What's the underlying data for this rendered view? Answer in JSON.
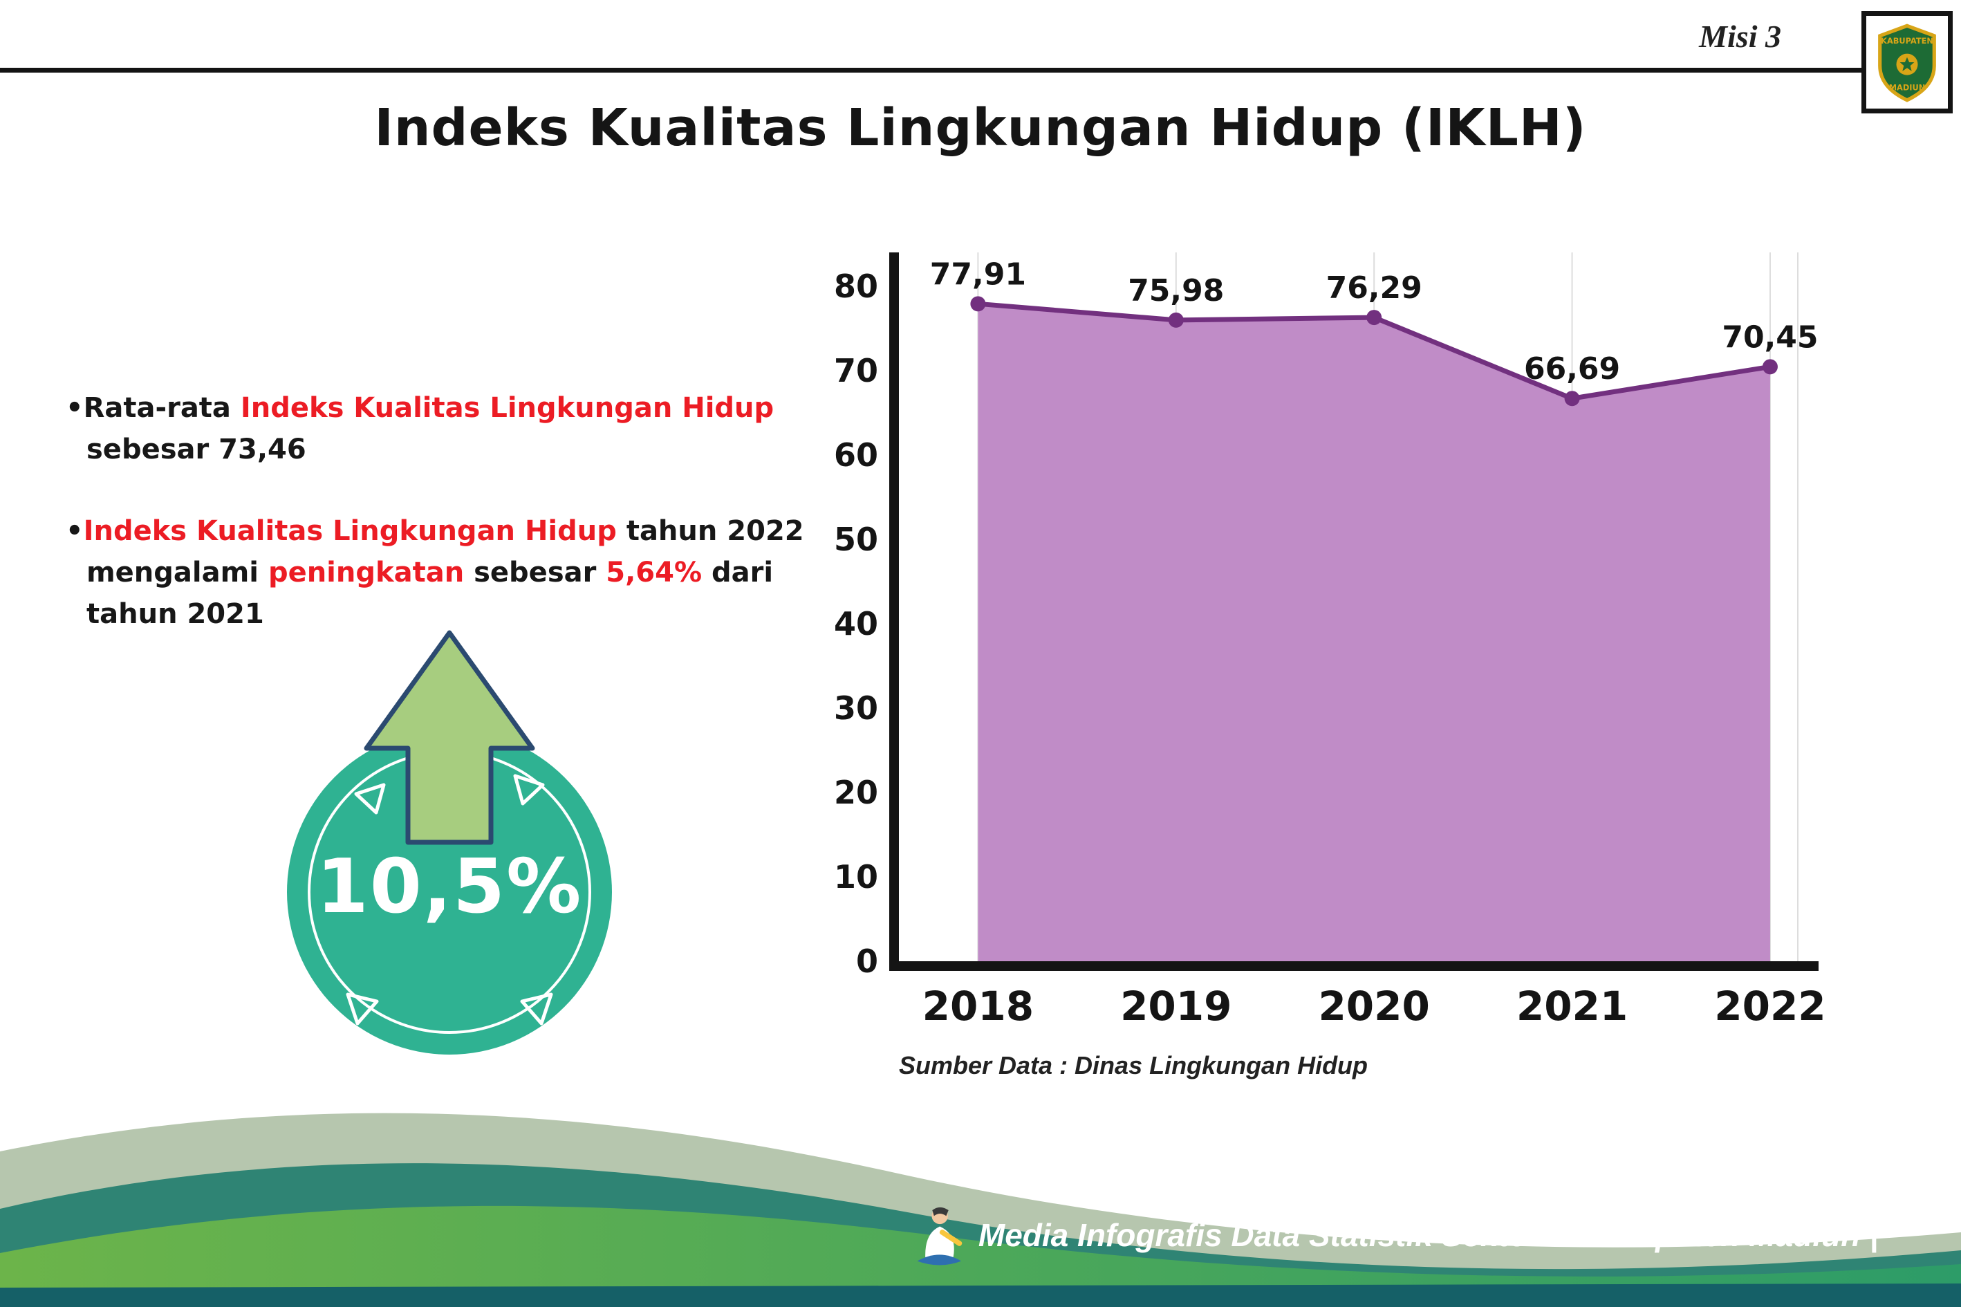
{
  "colors": {
    "red": "#ec1c24",
    "axis": "#141414"
  },
  "header": {
    "misi_label": "Misi 3",
    "title": "Indeks Kualitas Lingkungan Hidup (IKLH)",
    "logo": {
      "name": "kabupaten-madiun-logo",
      "top_text": "KABUPATEN",
      "bottom_text": "MADIUN"
    }
  },
  "bullets": {
    "bullet1": {
      "marker": "•",
      "part1": "Rata-rata ",
      "part2": "Indeks Kualitas Lingkungan Hidup",
      "part3": " sebesar 73,46"
    },
    "bullet2": {
      "marker": "•",
      "part1": "Indeks Kualitas Lingkungan Hidup",
      "part2": " tahun 2022 mengalami ",
      "part3": "peningkatan",
      "part4": " sebesar ",
      "part5": "5,64%",
      "part6": " dari tahun 2021"
    }
  },
  "badge": {
    "value": "10,5%",
    "icon": "up-arrow-icon",
    "circle_color": "#2fb292",
    "arrow_color": "#a7cd7f",
    "arrow_outline": "#2b4a70"
  },
  "chart_data": {
    "type": "area",
    "title": "Indeks Kualitas Lingkungan Hidup (IKLH)",
    "categories": [
      "2018",
      "2019",
      "2020",
      "2021",
      "2022"
    ],
    "values": [
      77.91,
      75.98,
      76.29,
      66.69,
      70.45
    ],
    "value_labels": [
      "77,91",
      "75,98",
      "76,29",
      "66,69",
      "70,45"
    ],
    "xlabel": "",
    "ylabel": "",
    "ylim": [
      0,
      80
    ],
    "yticks": [
      0,
      10,
      20,
      30,
      40,
      50,
      60,
      70,
      80
    ],
    "grid": "vertical-light",
    "legend": "none",
    "area_color": "#c08cc7",
    "line_color": "#72307f",
    "source": "Sumber Data : Dinas Lingkungan Hidup"
  },
  "footer": {
    "icon": "statistics-mascot-icon",
    "text": "Media Infografis Data Statistik Sektoral Kabupaten Madiun |"
  }
}
